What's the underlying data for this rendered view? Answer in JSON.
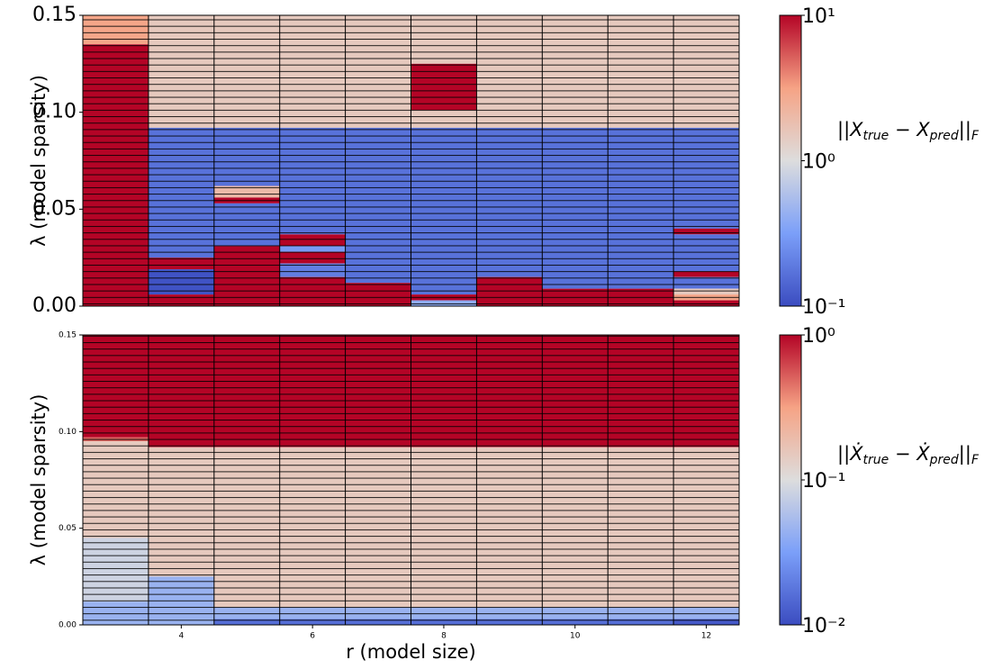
{
  "chart_data": [
    {
      "type": "heatmap",
      "ylabel": "λ (model sparsity)",
      "x": [
        3,
        4,
        5,
        6,
        7,
        8,
        9,
        10,
        11,
        12
      ],
      "xlim": [
        2.5,
        12.5
      ],
      "ylim": [
        0,
        0.15
      ],
      "yticks": [
        {
          "value": 0,
          "label": "0.00"
        },
        {
          "value": 0.05,
          "label": "0.05"
        },
        {
          "value": 0.1,
          "label": "0.10"
        },
        {
          "value": 0.15,
          "label": "0.15"
        }
      ],
      "segments": [
        [
          [
            0.135,
            0.15,
            3
          ],
          [
            0,
            0.135,
            10
          ]
        ],
        [
          [
            0.092,
            0.15,
            1.5
          ],
          [
            0.025,
            0.092,
            0.17
          ],
          [
            0.019,
            0.025,
            10
          ],
          [
            0.006,
            0.019,
            0.11
          ],
          [
            0,
            0.006,
            10
          ]
        ],
        [
          [
            0.092,
            0.15,
            1.5
          ],
          [
            0.062,
            0.092,
            0.17
          ],
          [
            0.056,
            0.062,
            2
          ],
          [
            0.053,
            0.056,
            10
          ],
          [
            0.031,
            0.053,
            0.17
          ],
          [
            0,
            0.031,
            10
          ]
        ],
        [
          [
            0.092,
            0.15,
            1.5
          ],
          [
            0.037,
            0.092,
            0.17
          ],
          [
            0.031,
            0.037,
            10
          ],
          [
            0.028,
            0.031,
            0.3
          ],
          [
            0.022,
            0.028,
            10
          ],
          [
            0.015,
            0.022,
            0.2
          ],
          [
            0,
            0.015,
            10
          ]
        ],
        [
          [
            0.092,
            0.15,
            1.5
          ],
          [
            0.012,
            0.092,
            0.17
          ],
          [
            0,
            0.012,
            10
          ]
        ],
        [
          [
            0.125,
            0.15,
            1.5
          ],
          [
            0.101,
            0.125,
            10
          ],
          [
            0.092,
            0.101,
            1.5
          ],
          [
            0.006,
            0.092,
            0.17
          ],
          [
            0.003,
            0.006,
            10
          ],
          [
            0,
            0.003,
            0.4
          ]
        ],
        [
          [
            0.092,
            0.15,
            1.5
          ],
          [
            0.015,
            0.092,
            0.17
          ],
          [
            0,
            0.015,
            10
          ]
        ],
        [
          [
            0.092,
            0.15,
            1.5
          ],
          [
            0.009,
            0.092,
            0.17
          ],
          [
            0,
            0.009,
            10
          ]
        ],
        [
          [
            0.092,
            0.15,
            1.5
          ],
          [
            0.009,
            0.092,
            0.17
          ],
          [
            0,
            0.009,
            10
          ]
        ],
        [
          [
            0.092,
            0.15,
            1.5
          ],
          [
            0.04,
            0.092,
            0.17
          ],
          [
            0.037,
            0.04,
            10
          ],
          [
            0.018,
            0.037,
            0.17
          ],
          [
            0.015,
            0.018,
            10
          ],
          [
            0.009,
            0.015,
            0.17
          ],
          [
            0.006,
            0.009,
            1.5
          ],
          [
            0.003,
            0.006,
            3
          ],
          [
            0,
            0.003,
            10
          ]
        ]
      ],
      "zlim": [
        0.1,
        10
      ],
      "log": true,
      "zticks": [
        {
          "value": 0.1,
          "label": "10⁻¹"
        },
        {
          "value": 1,
          "label": "10⁰"
        },
        {
          "value": 10,
          "label": "10¹"
        }
      ],
      "colormap": [
        "#3b4cc0",
        "#7b9ff9",
        "#dddddd",
        "#f6a385",
        "#b40426"
      ],
      "colorbar_label": [
        {
          "text": "||X"
        },
        {
          "text": "true",
          "sub": true
        },
        {
          "text": " − X"
        },
        {
          "text": "pred",
          "sub": true
        },
        {
          "text": "||"
        },
        {
          "text": "F",
          "sub": true
        }
      ]
    },
    {
      "type": "heatmap",
      "ylabel": "λ (model sparsity)",
      "xlabel": "r (model size)",
      "x": [
        3,
        4,
        5,
        6,
        7,
        8,
        9,
        10,
        11,
        12
      ],
      "xlim": [
        2.5,
        12.5
      ],
      "xticks": [
        4,
        6,
        8,
        10,
        12
      ],
      "ylim": [
        0,
        0.15
      ],
      "yticks": [
        {
          "value": 0,
          "label": "0.00"
        },
        {
          "value": 0.05,
          "label": "0.05"
        },
        {
          "value": 0.1,
          "label": "0.10"
        },
        {
          "value": 0.15,
          "label": "0.15"
        }
      ],
      "segments": [
        [
          [
            0.097,
            0.15,
            1
          ],
          [
            0.095,
            0.097,
            0.5
          ],
          [
            0.045,
            0.095,
            0.15
          ],
          [
            0.012,
            0.045,
            0.083
          ],
          [
            0,
            0.012,
            0.045
          ]
        ],
        [
          [
            0.092,
            0.15,
            1
          ],
          [
            0.025,
            0.092,
            0.15
          ],
          [
            0,
            0.025,
            0.045
          ]
        ],
        [
          [
            0.092,
            0.15,
            1
          ],
          [
            0.009,
            0.092,
            0.15
          ],
          [
            0.003,
            0.009,
            0.045
          ],
          [
            0,
            0.003,
            0.016
          ]
        ],
        [
          [
            0.092,
            0.15,
            1
          ],
          [
            0.009,
            0.092,
            0.15
          ],
          [
            0.003,
            0.009,
            0.045
          ],
          [
            0,
            0.003,
            0.016
          ]
        ],
        [
          [
            0.092,
            0.15,
            1
          ],
          [
            0.009,
            0.092,
            0.15
          ],
          [
            0.003,
            0.009,
            0.045
          ],
          [
            0,
            0.003,
            0.016
          ]
        ],
        [
          [
            0.092,
            0.15,
            1
          ],
          [
            0.009,
            0.092,
            0.15
          ],
          [
            0.003,
            0.009,
            0.045
          ],
          [
            0,
            0.003,
            0.016
          ]
        ],
        [
          [
            0.092,
            0.15,
            1
          ],
          [
            0.009,
            0.092,
            0.15
          ],
          [
            0.003,
            0.009,
            0.045
          ],
          [
            0,
            0.003,
            0.016
          ]
        ],
        [
          [
            0.092,
            0.15,
            1
          ],
          [
            0.009,
            0.092,
            0.15
          ],
          [
            0.003,
            0.009,
            0.045
          ],
          [
            0,
            0.003,
            0.016
          ]
        ],
        [
          [
            0.092,
            0.15,
            1
          ],
          [
            0.009,
            0.092,
            0.15
          ],
          [
            0.003,
            0.009,
            0.045
          ],
          [
            0,
            0.003,
            0.016
          ]
        ],
        [
          [
            0.092,
            0.15,
            1
          ],
          [
            0.009,
            0.092,
            0.15
          ],
          [
            0.003,
            0.009,
            0.045
          ],
          [
            0,
            0.003,
            0.012
          ]
        ]
      ],
      "zlim": [
        0.01,
        1
      ],
      "log": true,
      "zticks": [
        {
          "value": 0.01,
          "label": "10⁻²"
        },
        {
          "value": 0.1,
          "label": "10⁻¹"
        },
        {
          "value": 1,
          "label": "10⁰"
        }
      ],
      "colormap": [
        "#3b4cc0",
        "#7b9ff9",
        "#dddddd",
        "#f6a385",
        "#b40426"
      ],
      "colorbar_label": [
        {
          "text": "||Ẋ"
        },
        {
          "text": "true",
          "sub": true
        },
        {
          "text": " − Ẋ"
        },
        {
          "text": "pred",
          "sub": true
        },
        {
          "text": "||"
        },
        {
          "text": "F",
          "sub": true
        }
      ]
    }
  ]
}
